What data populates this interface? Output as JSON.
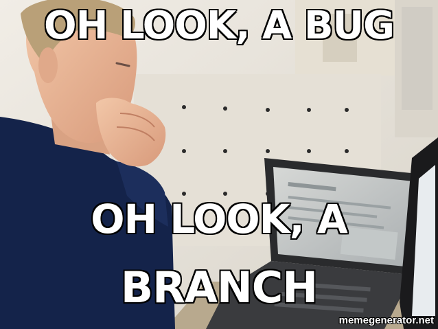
{
  "top_text": "OH LOOK, A BUG",
  "bottom_text_line1": "OH LOOK, A",
  "bottom_text_line2": "BRANCH",
  "watermark": "memegenerator.net"
}
